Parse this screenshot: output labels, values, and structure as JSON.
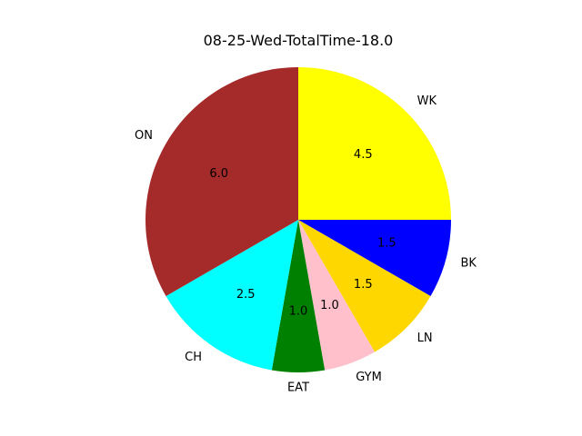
{
  "chart_data": {
    "type": "pie",
    "title": "08-25-Wed-TotalTime-18.0",
    "categories": [
      "WK",
      "BK",
      "LN",
      "GYM",
      "EAT",
      "CH",
      "ON"
    ],
    "values": [
      4.5,
      1.5,
      1.5,
      1.0,
      1.0,
      2.5,
      6.0
    ],
    "value_labels": [
      "4.5",
      "1.5",
      "1.5",
      "1.0",
      "1.0",
      "2.5",
      "6.0"
    ],
    "colors": [
      "#ffff00",
      "#0000ff",
      "#ffd700",
      "#ffc0cb",
      "#008000",
      "#00ffff",
      "#a52a2a"
    ],
    "start_angle_deg": 90,
    "direction": "clockwise",
    "legend": "none"
  }
}
